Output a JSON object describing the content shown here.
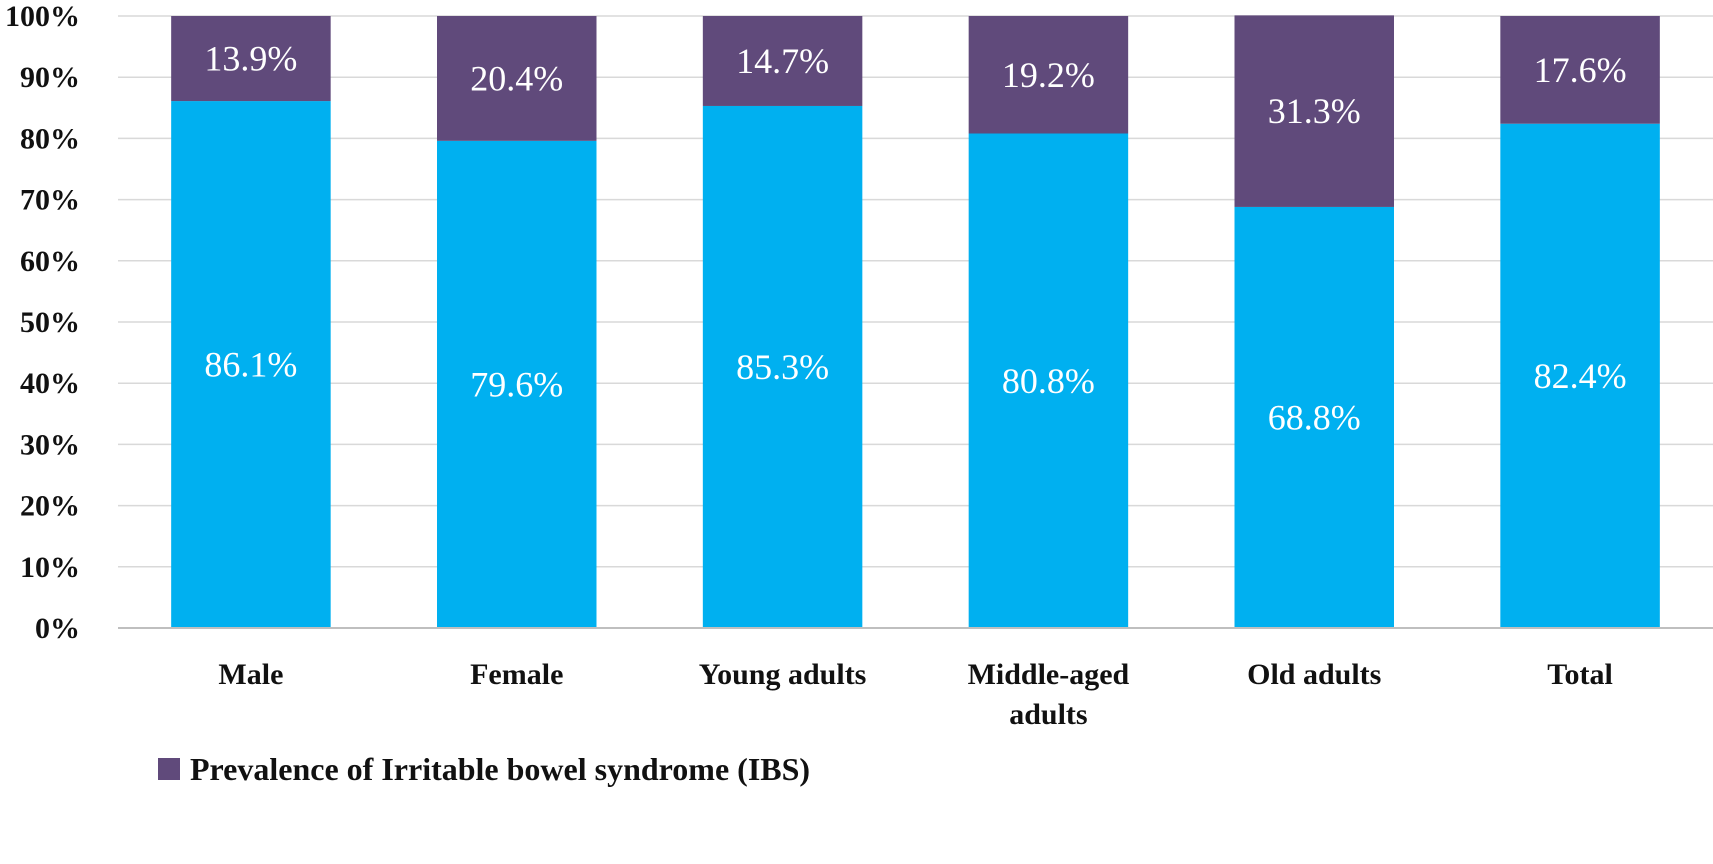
{
  "chart_data": {
    "type": "bar",
    "stacked": true,
    "categories": [
      [
        "Male"
      ],
      [
        "Female"
      ],
      [
        "Young adults"
      ],
      [
        "Middle-aged",
        "adults"
      ],
      [
        "Old adults"
      ],
      [
        "Total"
      ]
    ],
    "series": [
      {
        "values": [
          86.1,
          79.6,
          85.3,
          80.8,
          68.8,
          82.4
        ],
        "labels": [
          "86.1%",
          "79.6%",
          "85.3%",
          "80.8%",
          "68.8%",
          "82.4%"
        ],
        "color": "#00b0f0"
      },
      {
        "name": "Prevalence of Irritable bowel syndrome (IBS)",
        "values": [
          13.9,
          20.4,
          14.7,
          19.2,
          31.3,
          17.6
        ],
        "labels": [
          "13.9%",
          "20.4%",
          "14.7%",
          "19.2%",
          "31.3%",
          "17.6%"
        ],
        "color": "#604a7b"
      }
    ],
    "yticks": [
      "0%",
      "10%",
      "20%",
      "30%",
      "40%",
      "50%",
      "60%",
      "70%",
      "80%",
      "90%",
      "100%"
    ],
    "ylim": [
      0,
      100
    ],
    "grid": true,
    "legend_position": "bottom-left"
  }
}
